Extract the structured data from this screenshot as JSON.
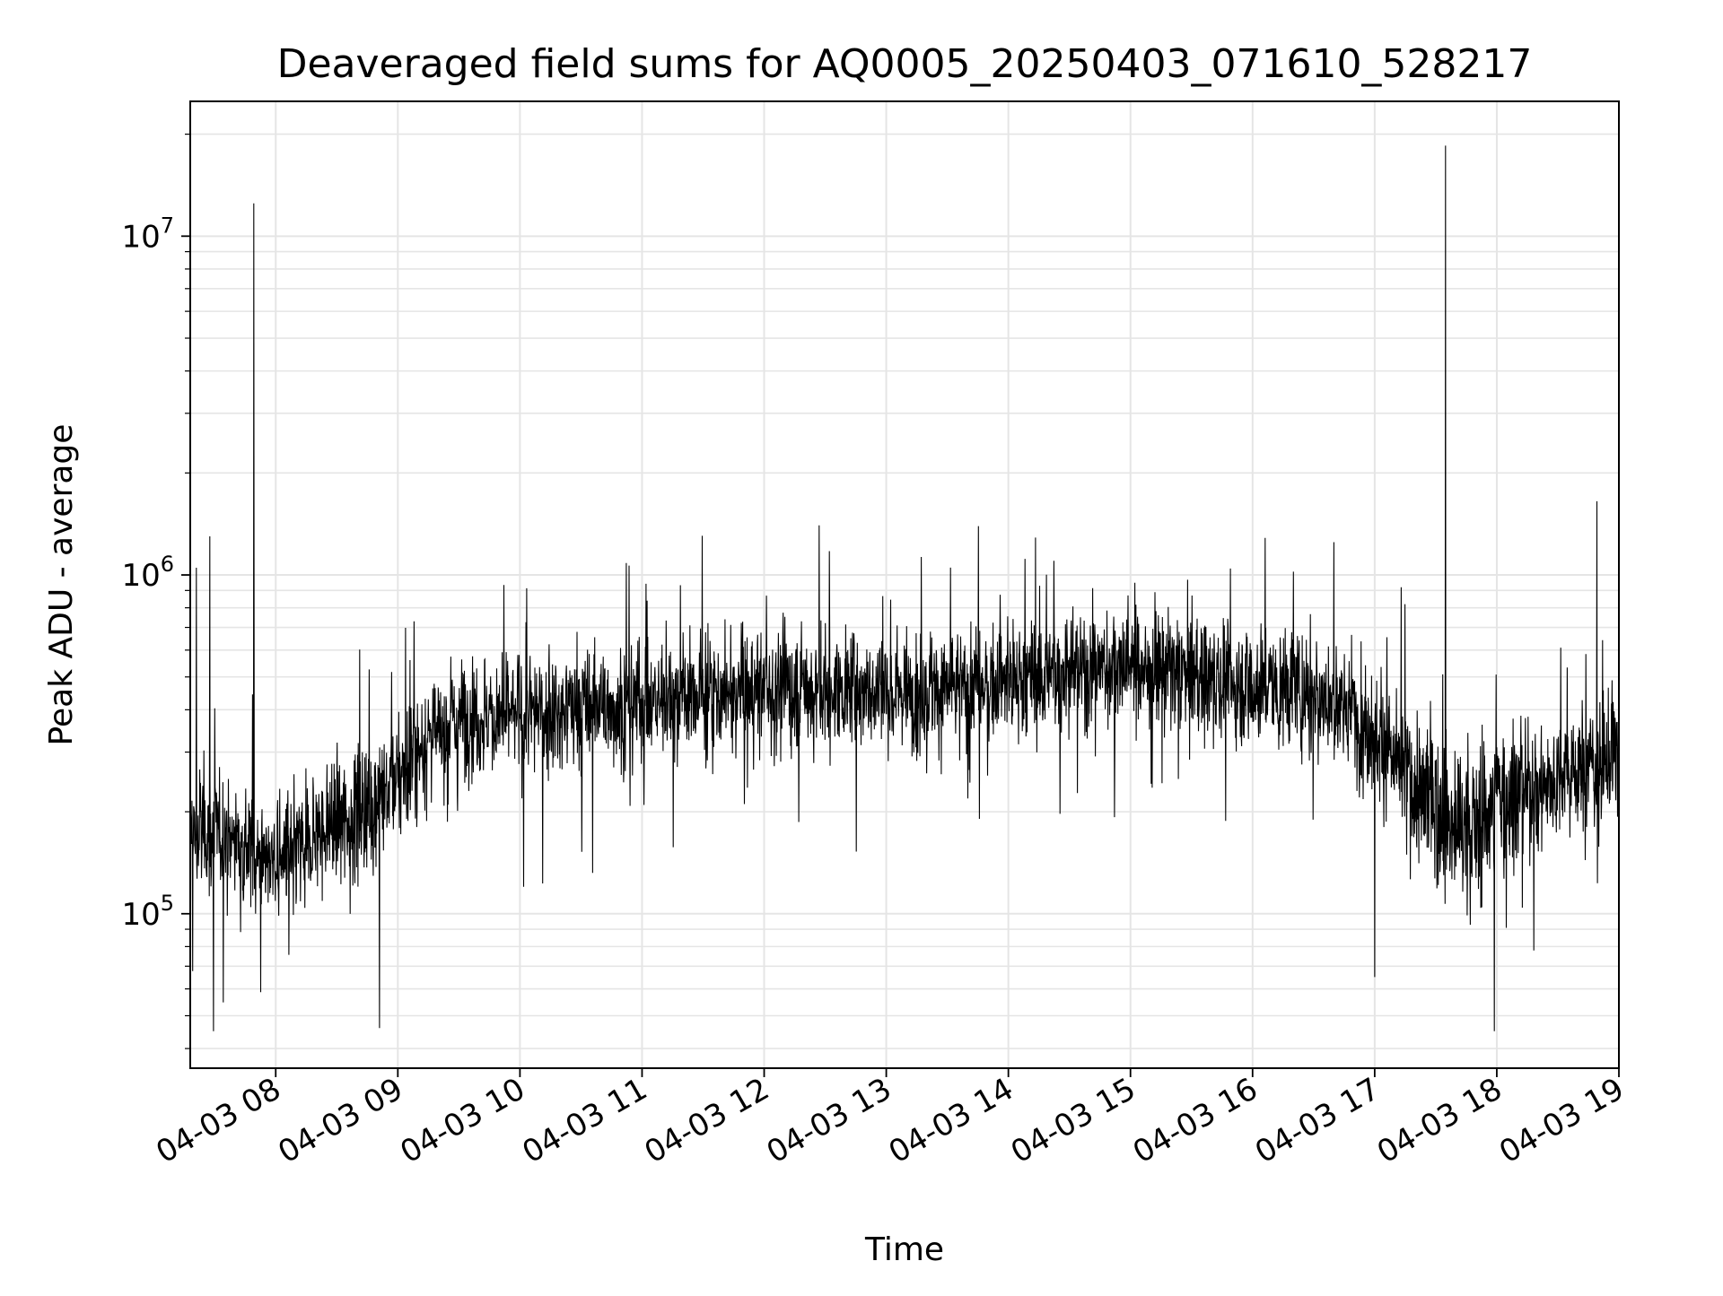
{
  "chart_data": {
    "type": "line",
    "title": "Deaveraged field sums for AQ0005_20250403_071610_528217",
    "xlabel": "Time",
    "ylabel": "Peak ADU - average",
    "yscale": "log",
    "grid": true,
    "x_tick_labels": [
      "04-03 08",
      "04-03 09",
      "04-03 10",
      "04-03 11",
      "04-03 12",
      "04-03 13",
      "04-03 14",
      "04-03 15",
      "04-03 16",
      "04-03 17",
      "04-03 18",
      "04-03 19"
    ],
    "x_tick_hours": [
      8,
      9,
      10,
      11,
      12,
      13,
      14,
      15,
      16,
      17,
      18,
      19
    ],
    "xlim_hours": [
      7.3,
      19.0
    ],
    "ylim": [
      35000,
      25000000
    ],
    "y_major_ticks": [
      {
        "value": 100000,
        "base": "10",
        "exp": "5"
      },
      {
        "value": 1000000,
        "base": "10",
        "exp": "6"
      },
      {
        "value": 10000000,
        "base": "10",
        "exp": "7"
      }
    ],
    "line_color": "#000000",
    "grid_color": "#e5e5e5",
    "series": [
      {
        "x_hours": [
          7.3,
          7.5,
          7.75,
          8.0,
          8.25,
          8.5,
          8.75,
          9.0,
          9.25,
          9.5,
          10.0,
          10.5,
          11.0,
          11.5,
          12.0,
          12.5,
          13.0,
          13.5,
          14.0,
          14.5,
          15.0,
          15.5,
          16.0,
          16.5,
          16.9,
          17.2,
          17.5,
          17.8,
          18.0,
          18.5,
          19.0
        ],
        "median": [
          170000,
          175000,
          160000,
          140000,
          160000,
          190000,
          200000,
          250000,
          330000,
          380000,
          380000,
          400000,
          420000,
          440000,
          460000,
          460000,
          460000,
          460000,
          480000,
          520000,
          550000,
          500000,
          470000,
          450000,
          380000,
          270000,
          200000,
          170000,
          220000,
          250000,
          300000
        ],
        "spikes": [
          {
            "x_hour": 7.35,
            "y": 1050000
          },
          {
            "x_hour": 7.46,
            "y": 1300000
          },
          {
            "x_hour": 7.82,
            "y": 12500000
          },
          {
            "x_hour": 12.45,
            "y": 1400000
          },
          {
            "x_hour": 17.58,
            "y": 18500000
          },
          {
            "x_hour": 18.82,
            "y": 1650000
          }
        ],
        "dips": [
          {
            "x_hour": 7.49,
            "y": 45000
          },
          {
            "x_hour": 8.85,
            "y": 46000
          },
          {
            "x_hour": 17.0,
            "y": 65000
          },
          {
            "x_hour": 17.98,
            "y": 45000
          }
        ]
      }
    ]
  }
}
